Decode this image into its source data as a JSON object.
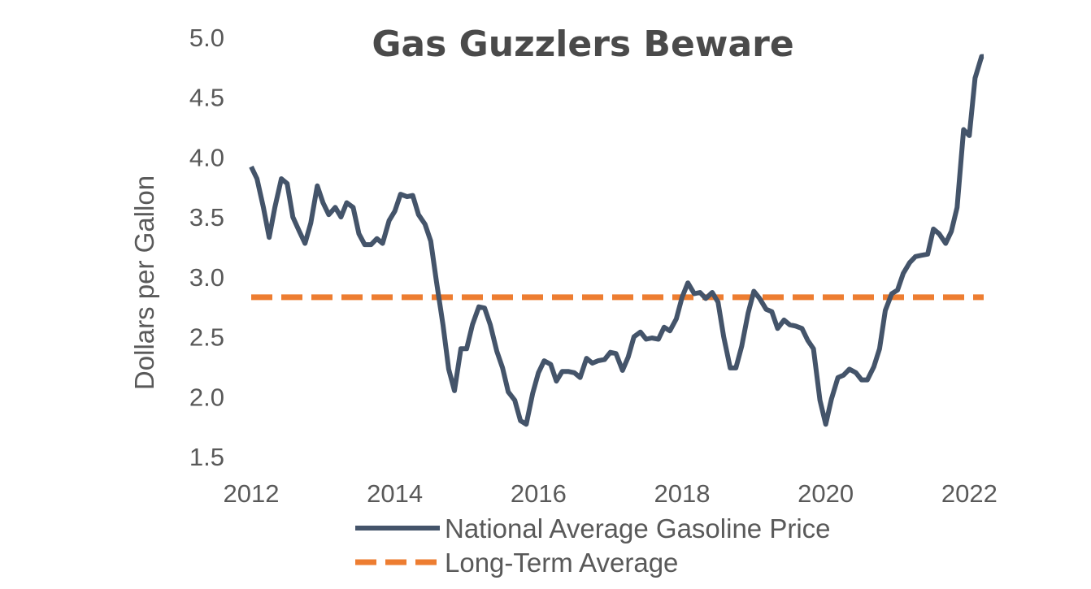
{
  "chart_data": {
    "type": "line",
    "title": "Gas Guzzlers Beware",
    "xlabel": "",
    "ylabel": "Dollars per Gallon",
    "xlim": [
      2012,
      2022.2
    ],
    "ylim": [
      1.5,
      5.0
    ],
    "x_ticks": [
      "2012",
      "2014",
      "2016",
      "2018",
      "2020",
      "2022"
    ],
    "y_ticks": [
      "1.5",
      "2.0",
      "2.5",
      "3.0",
      "3.5",
      "4.0",
      "4.5",
      "5.0"
    ],
    "grid": false,
    "legend_position": "bottom",
    "colors": {
      "price": "#44546a",
      "average": "#ed7d31",
      "text": "#595959",
      "title": "#4a4a4a"
    },
    "series": [
      {
        "name": "National Average Gasoline Price",
        "style": "solid",
        "x": [
          2012.0,
          2012.08,
          2012.17,
          2012.25,
          2012.33,
          2012.42,
          2012.5,
          2012.58,
          2012.67,
          2012.75,
          2012.83,
          2012.92,
          2013.0,
          2013.08,
          2013.17,
          2013.25,
          2013.33,
          2013.42,
          2013.5,
          2013.58,
          2013.67,
          2013.75,
          2013.83,
          2013.92,
          2014.0,
          2014.08,
          2014.17,
          2014.25,
          2014.33,
          2014.42,
          2014.5,
          2014.58,
          2014.67,
          2014.75,
          2014.83,
          2014.92,
          2015.0,
          2015.08,
          2015.17,
          2015.25,
          2015.33,
          2015.42,
          2015.5,
          2015.58,
          2015.67,
          2015.75,
          2015.83,
          2015.92,
          2016.0,
          2016.08,
          2016.17,
          2016.25,
          2016.33,
          2016.42,
          2016.5,
          2016.58,
          2016.67,
          2016.75,
          2016.83,
          2016.92,
          2017.0,
          2017.08,
          2017.17,
          2017.25,
          2017.33,
          2017.42,
          2017.5,
          2017.58,
          2017.67,
          2017.75,
          2017.83,
          2017.92,
          2018.0,
          2018.08,
          2018.17,
          2018.25,
          2018.33,
          2018.42,
          2018.5,
          2018.58,
          2018.67,
          2018.75,
          2018.83,
          2018.92,
          2019.0,
          2019.08,
          2019.17,
          2019.25,
          2019.33,
          2019.42,
          2019.5,
          2019.58,
          2019.67,
          2019.75,
          2019.83,
          2019.92,
          2020.0,
          2020.08,
          2020.17,
          2020.25,
          2020.33,
          2020.42,
          2020.5,
          2020.58,
          2020.67,
          2020.75,
          2020.83,
          2020.92,
          2021.0,
          2021.08,
          2021.17,
          2021.25,
          2021.33,
          2021.42,
          2021.5,
          2021.58,
          2021.67,
          2021.75,
          2021.83,
          2021.92,
          2022.0,
          2022.08,
          2022.17,
          2022.2
        ],
        "y": [
          3.92,
          3.82,
          3.58,
          3.33,
          3.58,
          3.82,
          3.78,
          3.5,
          3.38,
          3.28,
          3.45,
          3.76,
          3.62,
          3.52,
          3.58,
          3.5,
          3.62,
          3.58,
          3.36,
          3.27,
          3.27,
          3.32,
          3.28,
          3.47,
          3.55,
          3.69,
          3.67,
          3.68,
          3.52,
          3.44,
          3.3,
          2.96,
          2.6,
          2.23,
          2.05,
          2.4,
          2.4,
          2.6,
          2.75,
          2.74,
          2.6,
          2.38,
          2.24,
          2.04,
          1.97,
          1.8,
          1.77,
          2.03,
          2.2,
          2.3,
          2.27,
          2.13,
          2.21,
          2.21,
          2.2,
          2.16,
          2.32,
          2.28,
          2.3,
          2.31,
          2.37,
          2.36,
          2.22,
          2.33,
          2.5,
          2.54,
          2.48,
          2.49,
          2.48,
          2.58,
          2.55,
          2.65,
          2.83,
          2.95,
          2.86,
          2.87,
          2.82,
          2.87,
          2.79,
          2.5,
          2.24,
          2.24,
          2.42,
          2.7,
          2.88,
          2.82,
          2.73,
          2.71,
          2.57,
          2.64,
          2.6,
          2.59,
          2.57,
          2.47,
          2.4,
          1.97,
          1.77,
          1.98,
          2.16,
          2.18,
          2.23,
          2.2,
          2.14,
          2.14,
          2.25,
          2.4,
          2.72,
          2.86,
          2.89,
          3.03,
          3.12,
          3.17,
          3.18,
          3.19,
          3.4,
          3.36,
          3.28,
          3.38,
          3.58,
          4.23,
          4.18,
          4.66,
          4.84,
          4.84
        ]
      },
      {
        "name": "Long-Term Average",
        "style": "dashed",
        "x": [
          2012.0,
          2022.2
        ],
        "y": [
          2.83,
          2.83
        ]
      }
    ]
  }
}
